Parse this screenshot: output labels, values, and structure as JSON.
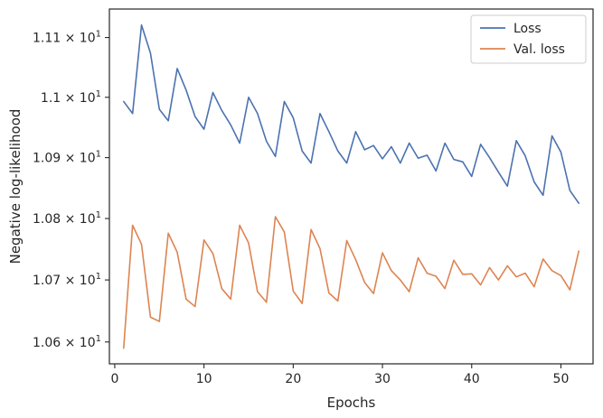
{
  "chart_data": {
    "type": "line",
    "title": "",
    "xlabel": "Epochs",
    "ylabel": "Negative log-likelihood",
    "xlim": [
      -0.6,
      53.6
    ],
    "ylim": [
      10.565,
      11.148
    ],
    "yscale": "log",
    "xticks": [
      0,
      10,
      20,
      30,
      40,
      50
    ],
    "yticks": [
      {
        "value": 10.6,
        "mantissa": "1.06",
        "base": "10",
        "exponent": "1"
      },
      {
        "value": 10.7,
        "mantissa": "1.07",
        "base": "10",
        "exponent": "1"
      },
      {
        "value": 10.8,
        "mantissa": "1.08",
        "base": "10",
        "exponent": "1"
      },
      {
        "value": 10.9,
        "mantissa": "1.09",
        "base": "10",
        "exponent": "1"
      },
      {
        "value": 11.0,
        "mantissa": "1.1",
        "base": "10",
        "exponent": "1"
      },
      {
        "value": 11.1,
        "mantissa": "1.11",
        "base": "10",
        "exponent": "1"
      }
    ],
    "grid": false,
    "legend": "top-right",
    "x": [
      1,
      2,
      3,
      4,
      5,
      6,
      7,
      8,
      9,
      10,
      11,
      12,
      13,
      14,
      15,
      16,
      17,
      18,
      19,
      20,
      21,
      22,
      23,
      24,
      25,
      26,
      27,
      28,
      29,
      30,
      31,
      32,
      33,
      34,
      35,
      36,
      37,
      38,
      39,
      40,
      41,
      42,
      43,
      44,
      45,
      46,
      47,
      48,
      49,
      50,
      51,
      52
    ],
    "series": [
      {
        "name": "Loss",
        "color": "#4c72b0",
        "values": [
          10.993,
          10.973,
          11.121,
          11.074,
          10.98,
          10.961,
          11.048,
          11.012,
          10.968,
          10.947,
          11.008,
          10.978,
          10.954,
          10.924,
          11.0,
          10.973,
          10.927,
          10.902,
          10.993,
          10.966,
          10.911,
          10.891,
          10.973,
          10.943,
          10.911,
          10.891,
          10.943,
          10.913,
          10.92,
          10.898,
          10.918,
          10.891,
          10.924,
          10.899,
          10.904,
          10.878,
          10.924,
          10.897,
          10.893,
          10.869,
          10.922,
          10.9,
          10.876,
          10.853,
          10.928,
          10.903,
          10.86,
          10.838,
          10.936,
          10.909,
          10.846,
          10.825
        ]
      },
      {
        "name": "Val. loss",
        "color": "#dd8452",
        "values": [
          10.59,
          10.789,
          10.758,
          10.64,
          10.633,
          10.776,
          10.745,
          10.669,
          10.657,
          10.765,
          10.743,
          10.686,
          10.669,
          10.789,
          10.76,
          10.681,
          10.664,
          10.803,
          10.778,
          10.682,
          10.662,
          10.782,
          10.751,
          10.679,
          10.666,
          10.764,
          10.733,
          10.696,
          10.678,
          10.744,
          10.715,
          10.7,
          10.681,
          10.736,
          10.711,
          10.706,
          10.686,
          10.732,
          10.709,
          10.71,
          10.692,
          10.72,
          10.7,
          10.723,
          10.705,
          10.711,
          10.689,
          10.734,
          10.715,
          10.707,
          10.684,
          10.747
        ]
      }
    ]
  }
}
